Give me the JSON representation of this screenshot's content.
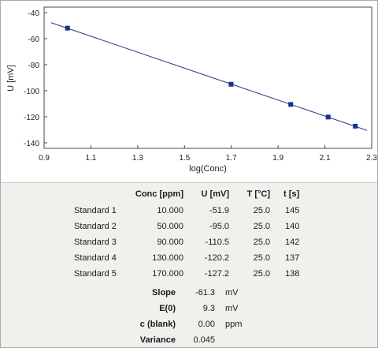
{
  "chart_data": {
    "type": "scatter",
    "xlabel": "log(Conc)",
    "ylabel": "U [mV]",
    "xlim": [
      0.9,
      2.3
    ],
    "ylim": [
      -140,
      -40
    ],
    "xticks": [
      0.9,
      1.1,
      1.3,
      1.5,
      1.7,
      1.9,
      2.1,
      2.3
    ],
    "xtick_labels": [
      "0.9",
      "1.1",
      "1.3",
      "1.5",
      "1.7",
      "1.9",
      "2.1",
      "2.3"
    ],
    "yticks": [
      -40,
      -60,
      -80,
      -100,
      -120,
      -140
    ],
    "ytick_labels": [
      "-40",
      "-60",
      "-80",
      "-100",
      "-120",
      "-140"
    ],
    "points": [
      {
        "x": 1.0,
        "y": -51.9
      },
      {
        "x": 1.699,
        "y": -95.0
      },
      {
        "x": 1.954,
        "y": -110.5
      },
      {
        "x": 2.114,
        "y": -120.2
      },
      {
        "x": 2.23,
        "y": -127.2
      }
    ],
    "fit_line": {
      "slope": -61.3,
      "intercept": 9.3,
      "x_range": [
        0.93,
        2.28
      ]
    },
    "grid": false,
    "colors": {
      "marker": "#1f2f8f",
      "line": "#2a3a8a"
    }
  },
  "table": {
    "headers": [
      "Conc [ppm]",
      "U [mV]",
      "T [°C]",
      "t [s]"
    ],
    "rows": [
      {
        "name": "Standard 1",
        "conc": "10.000",
        "u": "-51.9",
        "t": "25.0",
        "time": "145"
      },
      {
        "name": "Standard 2",
        "conc": "50.000",
        "u": "-95.0",
        "t": "25.0",
        "time": "140"
      },
      {
        "name": "Standard 3",
        "conc": "90.000",
        "u": "-110.5",
        "t": "25.0",
        "time": "142"
      },
      {
        "name": "Standard 4",
        "conc": "130.000",
        "u": "-120.2",
        "t": "25.0",
        "time": "137"
      },
      {
        "name": "Standard 5",
        "conc": "170.000",
        "u": "-127.2",
        "t": "25.0",
        "time": "138"
      }
    ]
  },
  "stats": [
    {
      "label": "Slope",
      "value": "-61.3",
      "unit": "mV"
    },
    {
      "label": "E(0)",
      "value": "9.3",
      "unit": "mV"
    },
    {
      "label": "c (blank)",
      "value": "0.00",
      "unit": "ppm"
    },
    {
      "label": "Variance",
      "value": "0.045",
      "unit": ""
    }
  ]
}
